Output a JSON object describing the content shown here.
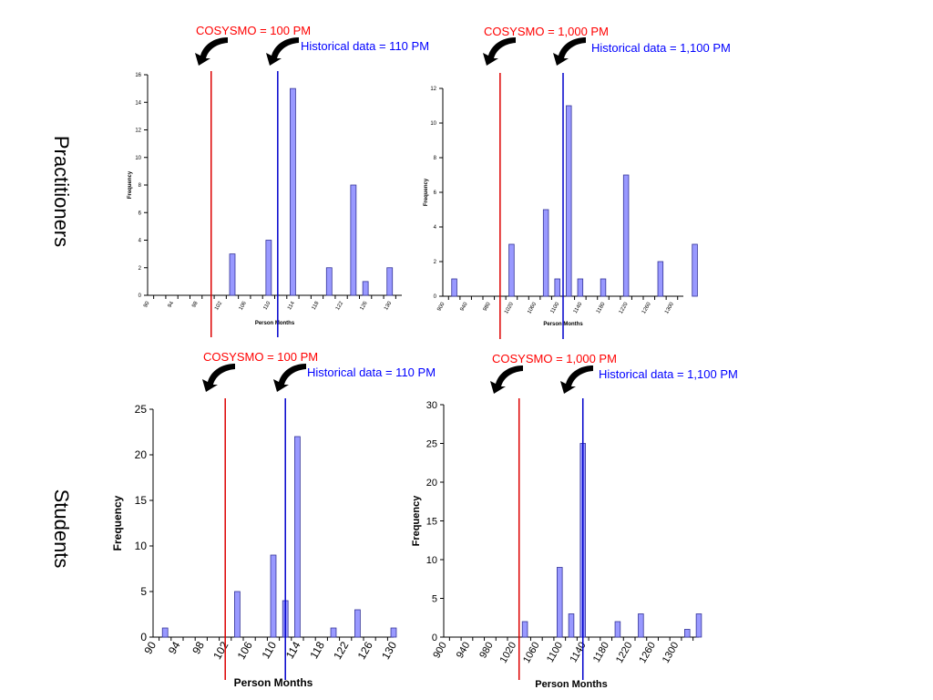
{
  "row_labels": [
    "Practitioners",
    "Students"
  ],
  "colors": {
    "bar_fill": "#9999ff",
    "bar_stroke": "#333399",
    "cosysmo_line": "#dd0000",
    "historical_line": "#0000cc",
    "cosysmo_text": "#ff0000",
    "historical_text": "#0000ff",
    "arrow": "#000000"
  },
  "chart_data": [
    {
      "type": "bar",
      "row": "Practitioners",
      "xlabel": "Person Months",
      "ylabel": "Frequency",
      "ylim": [
        0,
        16
      ],
      "yticks": [
        0,
        2,
        4,
        6,
        8,
        10,
        12,
        14,
        16
      ],
      "categories": [
        "90",
        "92",
        "94",
        "96",
        "98",
        "100",
        "102",
        "104",
        "106",
        "108",
        "110",
        "112",
        "114",
        "116",
        "118",
        "120",
        "122",
        "124",
        "126",
        "128",
        "130",
        "132"
      ],
      "tick_labels": [
        "90",
        "94",
        "98",
        "102",
        "106",
        "110",
        "114",
        "118",
        "122",
        "126",
        "130"
      ],
      "values": [
        0,
        0,
        0,
        0,
        0,
        0,
        3,
        0,
        0,
        4,
        0,
        15,
        0,
        0,
        2,
        0,
        8,
        1,
        0,
        2,
        0,
        0
      ],
      "annotations": {
        "cosysmo": "COSYSMO  = 100 PM",
        "historical": "Historical data = 110 PM",
        "cosysmo_x": 99.5,
        "historical_x": 110.5
      }
    },
    {
      "type": "bar",
      "row": "Practitioners",
      "xlabel": "Person Months",
      "ylabel": "Frequency",
      "ylim": [
        0,
        12
      ],
      "yticks": [
        0,
        2,
        4,
        6,
        8,
        10,
        12
      ],
      "categories": [
        "900",
        "920",
        "940",
        "960",
        "980",
        "1000",
        "1020",
        "1040",
        "1060",
        "1080",
        "1100",
        "1120",
        "1140",
        "1160",
        "1180",
        "1200",
        "1220",
        "1240",
        "1260",
        "1280",
        "1300",
        "1320"
      ],
      "tick_labels": [
        "900",
        "940",
        "980",
        "1020",
        "1060",
        "1100",
        "1140",
        "1180",
        "1220",
        "1260",
        "1300"
      ],
      "values": [
        1,
        0,
        0,
        0,
        0,
        3,
        0,
        0,
        5,
        1,
        11,
        1,
        0,
        1,
        0,
        7,
        0,
        0,
        2,
        0,
        0,
        3
      ],
      "annotations": {
        "cosysmo": "COSYSMO  = 1,000 PM",
        "historical": "Historical data = 1,100 PM",
        "cosysmo_x": 990,
        "historical_x": 1100
      }
    },
    {
      "type": "bar",
      "row": "Students",
      "xlabel": "Person  Months",
      "ylabel": "Frequency",
      "ylim": [
        0,
        25
      ],
      "yticks": [
        0,
        5,
        10,
        15,
        20,
        25
      ],
      "categories": [
        "90",
        "92",
        "94",
        "96",
        "98",
        "100",
        "102",
        "104",
        "106",
        "108",
        "110",
        "112",
        "114",
        "116",
        "118",
        "120",
        "122",
        "124",
        "126",
        "128",
        "130"
      ],
      "tick_labels": [
        "90",
        "94",
        "98",
        "102",
        "106",
        "110",
        "114",
        "118",
        "122",
        "126",
        "130"
      ],
      "values": [
        1,
        0,
        0,
        0,
        0,
        0,
        5,
        0,
        0,
        9,
        4,
        22,
        0,
        0,
        1,
        0,
        3,
        0,
        0,
        1,
        0
      ],
      "annotations": {
        "cosysmo": "COSYSMO  = 100 PM",
        "historical": "Historical data = 110 PM",
        "cosysmo_x": 101,
        "historical_x": 111
      }
    },
    {
      "type": "bar",
      "row": "Students",
      "xlabel": "Person Months",
      "ylabel": "Frequency",
      "ylim": [
        0,
        30
      ],
      "yticks": [
        0,
        5,
        10,
        15,
        20,
        25,
        30
      ],
      "categories": [
        "900",
        "920",
        "940",
        "960",
        "980",
        "1000",
        "1020",
        "1040",
        "1060",
        "1080",
        "1100",
        "1120",
        "1140",
        "1160",
        "1180",
        "1200",
        "1220",
        "1240",
        "1260",
        "1280",
        "1300",
        "1320"
      ],
      "tick_labels": [
        "900",
        "940",
        "980",
        "1020",
        "1060",
        "1100",
        "1140",
        "1180",
        "1220",
        "1260",
        "1300"
      ],
      "values": [
        0,
        0,
        0,
        0,
        0,
        0,
        2,
        0,
        0,
        9,
        3,
        25,
        0,
        0,
        2,
        0,
        3,
        0,
        0,
        0,
        1,
        3
      ],
      "annotations": {
        "cosysmo": "COSYSMO  = 1,000 PM",
        "historical": "Historical data = 1,100 PM",
        "cosysmo_x": 1020,
        "historical_x": 1130
      }
    }
  ]
}
